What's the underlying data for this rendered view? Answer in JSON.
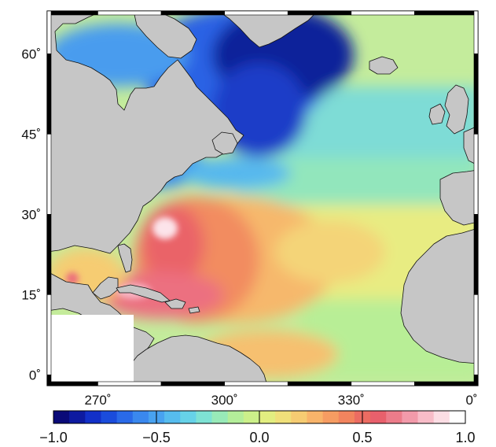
{
  "map": {
    "lon_labels": [
      "270˚",
      "300˚",
      "330˚",
      "0˚"
    ],
    "lat_labels": [
      "60˚",
      "45˚",
      "30˚",
      "15˚",
      "0˚"
    ],
    "extent": {
      "lon_min": 258,
      "lon_max": 360,
      "lat_min": -2,
      "lat_max": 68
    }
  },
  "colorbar": {
    "ticks": [
      "−1.0",
      "−0.5",
      "0.0",
      "0.5",
      "1.0"
    ],
    "min": -1.0,
    "max": 1.0,
    "colors": [
      "#0a0a78",
      "#0d1aa0",
      "#1230c8",
      "#1a4cdc",
      "#2a6ae8",
      "#3a88ee",
      "#48a2f0",
      "#56bcee",
      "#66d2e8",
      "#7ee2d4",
      "#98eab8",
      "#b4ee9a",
      "#ccf08a",
      "#e2ee80",
      "#f0e07a",
      "#f6cc72",
      "#f8b46a",
      "#f69c62",
      "#f2845e",
      "#ec6c62",
      "#e8606c",
      "#ec7c8a",
      "#f29aaa",
      "#f8bcc8",
      "#fcdde4",
      "#ffffff"
    ]
  },
  "colors": {
    "land": "#c6c6c6",
    "coast": "#111111",
    "frame": "#000000"
  }
}
